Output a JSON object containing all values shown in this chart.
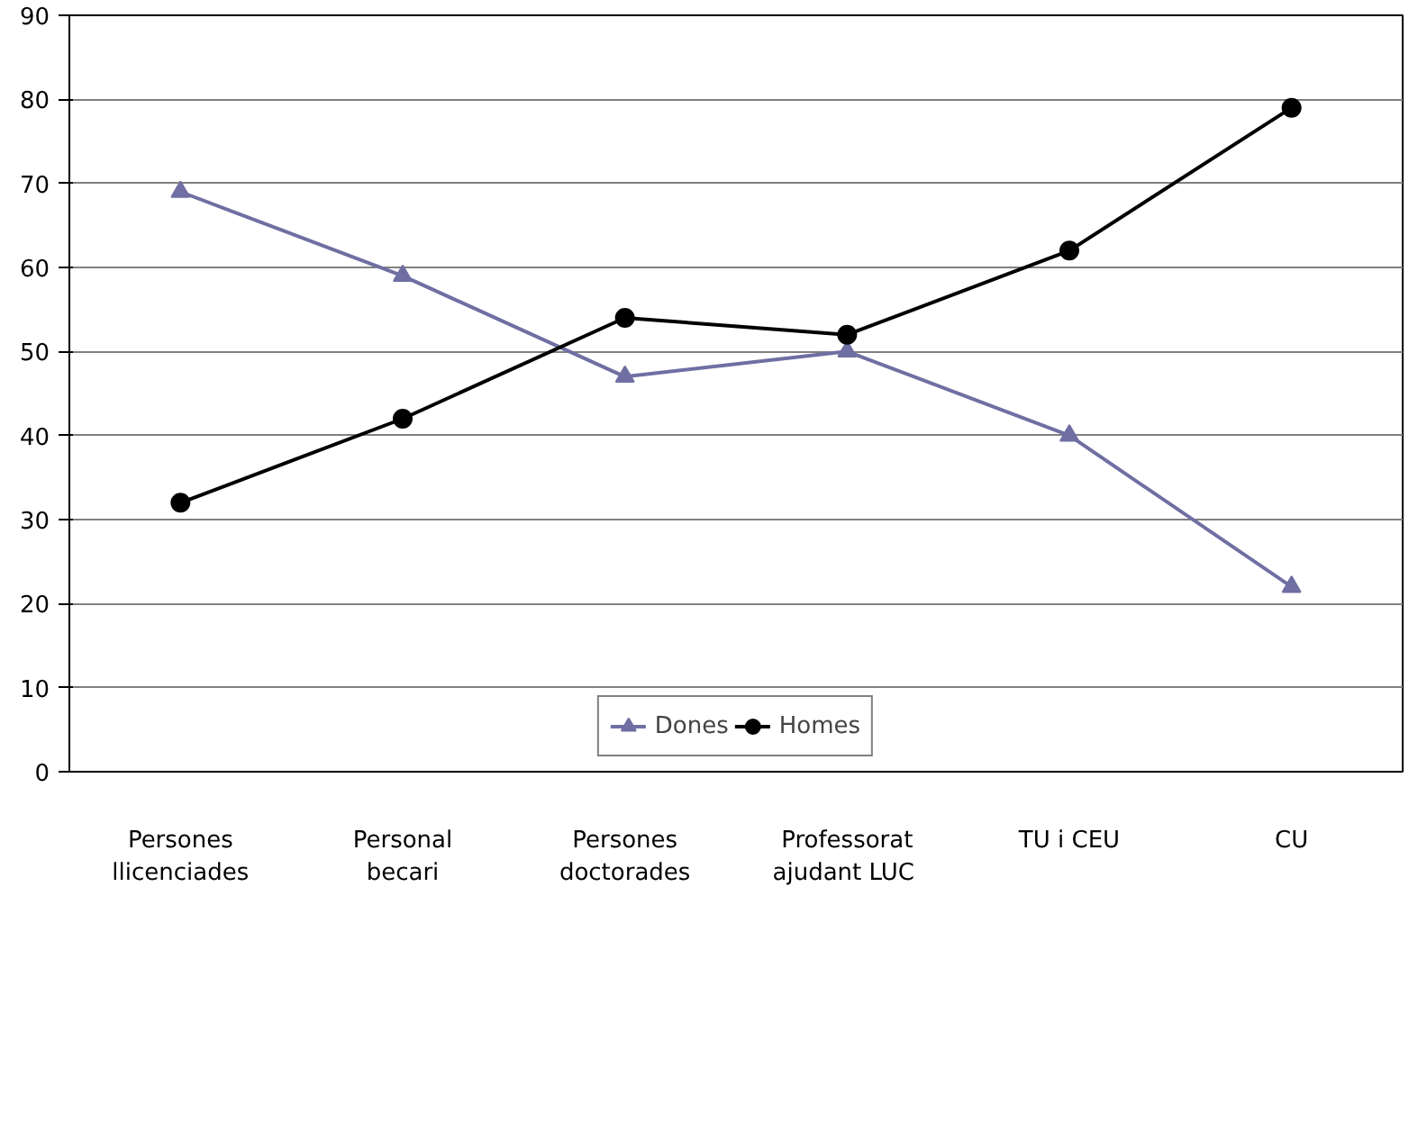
{
  "chart_data": {
    "type": "line",
    "categories": [
      "Persones\nllicenciades",
      "Personal\nbecari",
      "Persones\ndoctorades",
      "Professorat\najudant  LUC",
      "TU i CEU",
      "CU"
    ],
    "series": [
      {
        "name": "Dones",
        "color": "#6f6fa3",
        "marker": "triangle",
        "values": [
          69,
          59,
          47,
          50,
          40,
          22
        ]
      },
      {
        "name": "Homes",
        "color": "#000000",
        "marker": "circle",
        "values": [
          32,
          42,
          54,
          52,
          62,
          79
        ]
      }
    ],
    "ylim": [
      0,
      90
    ],
    "yticks": [
      0,
      10,
      20,
      30,
      40,
      50,
      60,
      70,
      80,
      90
    ],
    "grid": "y",
    "legend": "bottom"
  }
}
